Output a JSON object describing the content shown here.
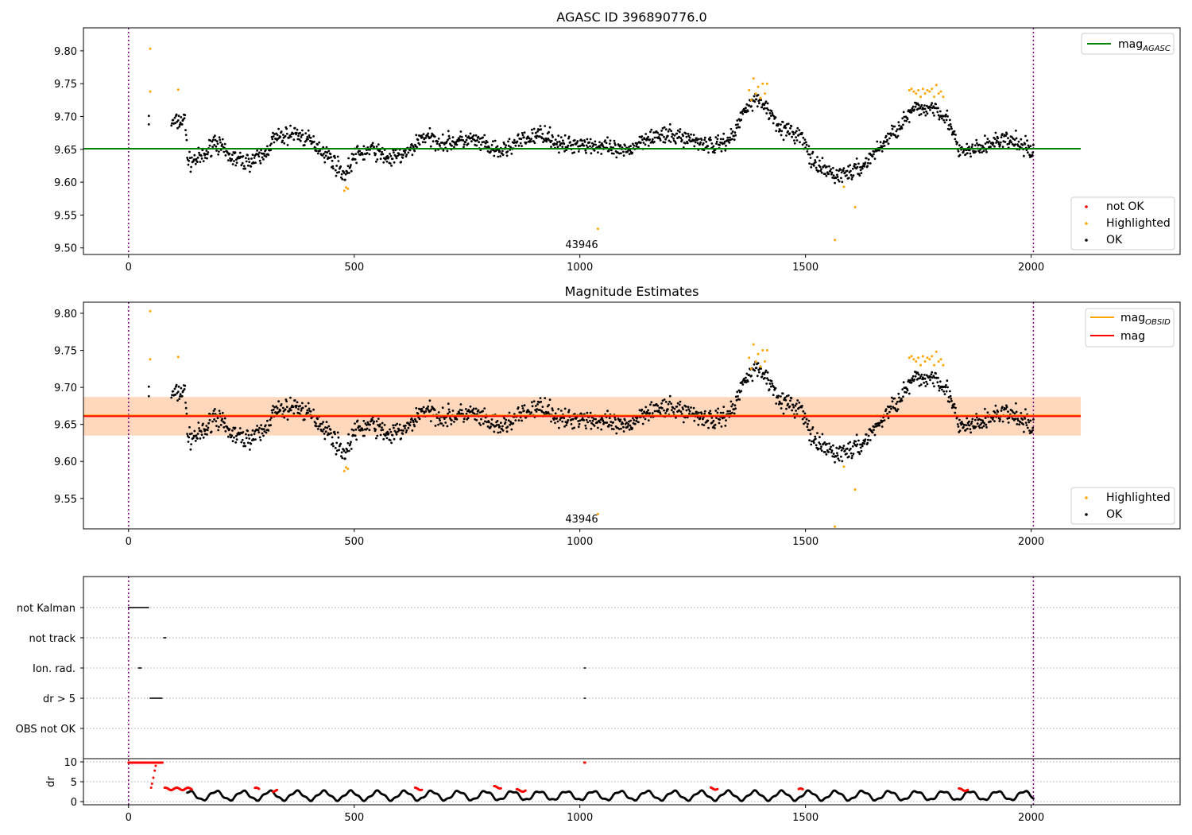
{
  "chart_data": [
    {
      "type": "scatter",
      "title": "AGASC ID 396890776.0",
      "annotation": "43946",
      "xlim": [
        -100,
        2330
      ],
      "ylim": [
        9.49,
        9.835
      ],
      "xticks": [
        "0",
        "500",
        "1000",
        "1500",
        "2000"
      ],
      "yticks": [
        "9.50",
        "9.55",
        "9.60",
        "9.65",
        "9.70",
        "9.75",
        "9.80"
      ],
      "vlines": [
        0,
        2005
      ],
      "hline": {
        "name": "mag_AGASC",
        "y": 9.651,
        "color": "#008000"
      },
      "legend_line": {
        "position": "upper right",
        "entries": [
          {
            "label": "mag",
            "sub": "AGASC",
            "color": "#008000"
          }
        ]
      },
      "legend_points": {
        "position": "lower right",
        "entries": [
          {
            "label": "not OK",
            "color": "#ff0000"
          },
          {
            "label": "Highlighted",
            "color": "#ffa500"
          },
          {
            "label": "OK",
            "color": "#000000"
          }
        ]
      },
      "series": [
        {
          "name": "Highlighted",
          "color": "#ffa500",
          "points": [
            [
              48,
              9.803
            ],
            [
              48,
              9.738
            ],
            [
              110,
              9.741
            ],
            [
              478,
              9.587
            ],
            [
              482,
              9.592
            ],
            [
              486,
              9.59
            ],
            [
              1040,
              9.529
            ],
            [
              1565,
              9.512
            ],
            [
              1585,
              9.593
            ],
            [
              1610,
              9.562
            ],
            [
              1375,
              9.74
            ],
            [
              1380,
              9.725
            ],
            [
              1385,
              9.758
            ],
            [
              1390,
              9.735
            ],
            [
              1395,
              9.745
            ],
            [
              1400,
              9.728
            ],
            [
              1405,
              9.75
            ],
            [
              1410,
              9.735
            ],
            [
              1415,
              9.75
            ],
            [
              1730,
              9.74
            ],
            [
              1735,
              9.742
            ],
            [
              1740,
              9.738
            ],
            [
              1745,
              9.735
            ],
            [
              1750,
              9.74
            ],
            [
              1755,
              9.73
            ],
            [
              1760,
              9.742
            ],
            [
              1765,
              9.735
            ],
            [
              1770,
              9.74
            ],
            [
              1775,
              9.738
            ],
            [
              1780,
              9.742
            ],
            [
              1785,
              9.73
            ],
            [
              1790,
              9.748
            ],
            [
              1795,
              9.735
            ],
            [
              1800,
              9.738
            ],
            [
              1805,
              9.73
            ]
          ]
        },
        {
          "name": "OK",
          "color": "#000000",
          "trend": [
            [
              42,
              9.69
            ],
            [
              100,
              9.69
            ],
            [
              125,
              9.695
            ],
            [
              132,
              9.63
            ],
            [
              170,
              9.64
            ],
            [
              190,
              9.665
            ],
            [
              220,
              9.64
            ],
            [
              260,
              9.63
            ],
            [
              300,
              9.64
            ],
            [
              320,
              9.665
            ],
            [
              370,
              9.675
            ],
            [
              420,
              9.655
            ],
            [
              450,
              9.635
            ],
            [
              480,
              9.61
            ],
            [
              500,
              9.64
            ],
            [
              540,
              9.65
            ],
            [
              580,
              9.635
            ],
            [
              620,
              9.645
            ],
            [
              650,
              9.67
            ],
            [
              700,
              9.66
            ],
            [
              760,
              9.665
            ],
            [
              820,
              9.645
            ],
            [
              860,
              9.66
            ],
            [
              920,
              9.675
            ],
            [
              960,
              9.655
            ],
            [
              1000,
              9.66
            ],
            [
              1040,
              9.655
            ],
            [
              1100,
              9.645
            ],
            [
              1150,
              9.67
            ],
            [
              1220,
              9.67
            ],
            [
              1300,
              9.655
            ],
            [
              1340,
              9.67
            ],
            [
              1370,
              9.72
            ],
            [
              1400,
              9.725
            ],
            [
              1450,
              9.68
            ],
            [
              1490,
              9.67
            ],
            [
              1520,
              9.625
            ],
            [
              1570,
              9.61
            ],
            [
              1620,
              9.62
            ],
            [
              1660,
              9.65
            ],
            [
              1700,
              9.68
            ],
            [
              1740,
              9.71
            ],
            [
              1790,
              9.715
            ],
            [
              1820,
              9.69
            ],
            [
              1840,
              9.645
            ],
            [
              1880,
              9.65
            ],
            [
              1930,
              9.665
            ],
            [
              1970,
              9.66
            ],
            [
              2005,
              9.645
            ]
          ]
        }
      ]
    },
    {
      "type": "scatter",
      "title": "Magnitude Estimates",
      "annotation": "43946",
      "xlim": [
        -100,
        2330
      ],
      "ylim": [
        9.509,
        9.815
      ],
      "xticks": [
        "0",
        "500",
        "1000",
        "1500",
        "2000"
      ],
      "yticks": [
        "9.55",
        "9.60",
        "9.65",
        "9.70",
        "9.75",
        "9.80"
      ],
      "vlines": [
        0,
        2005
      ],
      "hline": {
        "name": "mag",
        "y": 9.661,
        "color": "#ff0000"
      },
      "obsid_line": {
        "name": "mag_OBSID",
        "y": 9.661,
        "color": "#ffa500"
      },
      "bands": [
        {
          "y0": 9.635,
          "y1": 9.687,
          "color": "#ffb6c1",
          "opacity": 0.4
        },
        {
          "y0": 9.635,
          "y1": 9.687,
          "color": "#ffa500",
          "opacity": 0.18
        }
      ],
      "legend_line": {
        "position": "upper right",
        "entries": [
          {
            "label": "mag",
            "sub": "OBSID",
            "color": "#ffa500"
          },
          {
            "label": "mag",
            "sub": "",
            "color": "#ff0000"
          }
        ]
      },
      "legend_points": {
        "position": "lower right",
        "entries": [
          {
            "label": "Highlighted",
            "color": "#ffa500"
          },
          {
            "label": "OK",
            "color": "#000000"
          }
        ]
      }
    },
    {
      "type": "scatter",
      "title": "",
      "xlim": [
        -100,
        2330
      ],
      "xticks": [
        "0",
        "500",
        "1000",
        "1500",
        "2000"
      ],
      "flag_rows": [
        {
          "label": "not Kalman",
          "points": [
            [
              0,
              45
            ]
          ]
        },
        {
          "label": "not track",
          "points": [
            [
              78,
              82
            ]
          ]
        },
        {
          "label": "Ion. rad.",
          "points": [
            [
              22,
              28
            ],
            [
              1010,
              1012
            ]
          ]
        },
        {
          "label": "dr > 5",
          "points": [
            [
              48,
              75
            ],
            [
              1010,
              1012
            ]
          ]
        },
        {
          "label": "OBS not OK",
          "points": []
        }
      ],
      "dr": {
        "ylabel": "dr",
        "ylim": [
          -0.8,
          10.8
        ],
        "yticks": [
          "0",
          "5",
          "10"
        ],
        "red_segments": [
          [
            0,
            45,
            9.8
          ],
          [
            48,
            75,
            9.8
          ],
          [
            80,
            140,
            3.2
          ],
          [
            280,
            290,
            3.2
          ],
          [
            320,
            330,
            2.8
          ],
          [
            635,
            650,
            3.2
          ],
          [
            810,
            825,
            3.6
          ],
          [
            860,
            880,
            2.8
          ],
          [
            1010,
            1012,
            9.8
          ],
          [
            1290,
            1305,
            3.3
          ],
          [
            1485,
            1495,
            3.0
          ],
          [
            1840,
            1860,
            3.0
          ]
        ],
        "red_ramp": [
          [
            50,
            3.5
          ],
          [
            52,
            4.5
          ],
          [
            55,
            6
          ],
          [
            58,
            7.8
          ],
          [
            60,
            9
          ]
        ]
      }
    }
  ]
}
